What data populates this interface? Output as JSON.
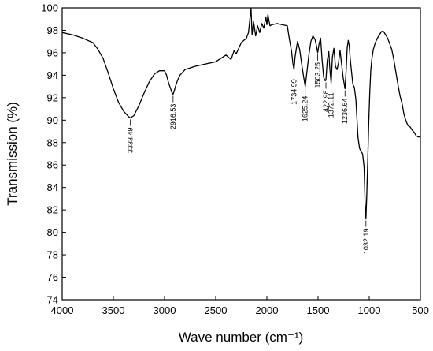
{
  "chart_data": {
    "type": "line",
    "xlabel": "Wave number (cm⁻¹)",
    "ylabel": "Transmission (%)",
    "xlim": [
      4000,
      500
    ],
    "ylim": [
      74,
      100
    ],
    "x_ticks": [
      4000,
      3500,
      3000,
      2500,
      2000,
      1500,
      1000,
      500
    ],
    "y_ticks": [
      74,
      76,
      78,
      80,
      82,
      84,
      86,
      88,
      90,
      92,
      94,
      96,
      98,
      100
    ],
    "grid": false,
    "legend": "none",
    "line_color": "#000000",
    "series": [
      {
        "x": [
          4000,
          3900,
          3800,
          3700,
          3650,
          3600,
          3550,
          3500,
          3450,
          3400,
          3350,
          3333.49,
          3300,
          3250,
          3200,
          3150,
          3100,
          3050,
          3000,
          2980,
          2960,
          2940,
          2930,
          2916.53,
          2905,
          2890,
          2870,
          2850,
          2800,
          2700,
          2600,
          2500,
          2450,
          2400,
          2350,
          2320,
          2300,
          2250,
          2200,
          2180,
          2165,
          2155,
          2145,
          2130,
          2110,
          2090,
          2070,
          2050,
          2030,
          2010,
          2000,
          1990,
          1970,
          1950,
          1900,
          1850,
          1800,
          1780,
          1760,
          1745,
          1734.99,
          1725,
          1710,
          1700,
          1680,
          1660,
          1640,
          1625.24,
          1610,
          1590,
          1570,
          1550,
          1530,
          1515,
          1503.25,
          1490,
          1475,
          1460,
          1445,
          1430,
          1422.98,
          1410,
          1395,
          1385,
          1372.11,
          1360,
          1345,
          1330,
          1315,
          1300,
          1285,
          1270,
          1255,
          1236.64,
          1225,
          1215,
          1205,
          1195,
          1185,
          1175,
          1160,
          1145,
          1130,
          1110,
          1095,
          1080,
          1065,
          1050,
          1040,
          1032.19,
          1025,
          1015,
          1005,
          995,
          985,
          975,
          960,
          940,
          920,
          900,
          880,
          860,
          840,
          820,
          800,
          780,
          760,
          740,
          720,
          700,
          680,
          660,
          640,
          620,
          600,
          580,
          560,
          540,
          520,
          500
        ],
        "values": [
          97.8,
          97.6,
          97.3,
          96.9,
          96.3,
          95.5,
          94.2,
          92.8,
          91.6,
          90.8,
          90.3,
          90.2,
          90.4,
          91.3,
          92.4,
          93.4,
          94.1,
          94.4,
          94.4,
          94.0,
          93.3,
          92.8,
          92.5,
          92.3,
          92.6,
          93.1,
          93.6,
          94.0,
          94.5,
          94.8,
          95.0,
          95.2,
          95.5,
          95.8,
          95.4,
          96.2,
          95.9,
          96.9,
          97.3,
          97.8,
          99.1,
          100.0,
          97.6,
          98.8,
          97.5,
          98.4,
          97.8,
          98.6,
          98.2,
          99.2,
          98.5,
          99.4,
          98.4,
          98.5,
          98.6,
          98.5,
          98.4,
          97.2,
          96.2,
          95.0,
          94.5,
          95.6,
          96.5,
          97.0,
          96.3,
          95.0,
          93.8,
          93.0,
          94.2,
          95.8,
          97.0,
          97.5,
          97.2,
          96.6,
          96.0,
          96.8,
          97.3,
          95.3,
          93.8,
          93.5,
          93.6,
          95.3,
          96.1,
          94.6,
          93.3,
          95.6,
          96.4,
          94.8,
          94.5,
          95.1,
          96.2,
          95.0,
          93.8,
          92.8,
          94.5,
          96.5,
          97.1,
          96.6,
          95.4,
          94.5,
          93.2,
          92.9,
          91.8,
          88.5,
          87.5,
          87.2,
          87.0,
          85.8,
          82.5,
          81.2,
          83.0,
          86.2,
          89.7,
          92.4,
          94.4,
          95.4,
          96.3,
          96.9,
          97.3,
          97.6,
          97.9,
          97.9,
          97.6,
          97.3,
          96.8,
          96.3,
          95.4,
          94.3,
          93.2,
          92.2,
          91.5,
          90.5,
          89.9,
          89.5,
          89.4,
          89.1,
          88.9,
          88.6,
          88.5,
          88.5
        ]
      }
    ],
    "annotations": [
      {
        "text": "3333.49",
        "x": 3333.49,
        "y": 90.2
      },
      {
        "text": "2916.53",
        "x": 2916.53,
        "y": 92.3
      },
      {
        "text": "1734.99",
        "x": 1734.99,
        "y": 94.5
      },
      {
        "text": "1625.24",
        "x": 1625.24,
        "y": 93.0
      },
      {
        "text": "1503.25",
        "x": 1503.25,
        "y": 96.0
      },
      {
        "text": "1422.98",
        "x": 1422.98,
        "y": 93.5
      },
      {
        "text": "1372.11",
        "x": 1372.11,
        "y": 93.3
      },
      {
        "text": "1236.64",
        "x": 1236.64,
        "y": 92.8
      },
      {
        "text": "1032.19",
        "x": 1032.19,
        "y": 81.2
      }
    ]
  }
}
